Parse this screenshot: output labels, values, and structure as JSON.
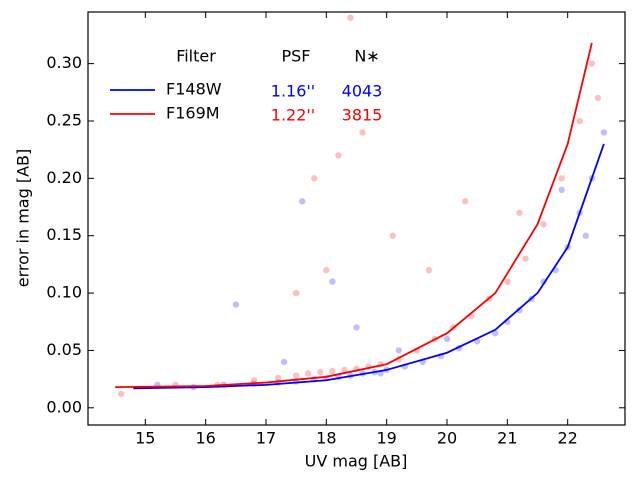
{
  "chart_data": {
    "type": "scatter",
    "x_label": "UV mag [AB]",
    "y_label": "error in mag [AB]",
    "xlim": [
      14.05,
      22.95
    ],
    "ylim": [
      -0.015,
      0.345
    ],
    "xticks": [
      15,
      16,
      17,
      18,
      19,
      20,
      21,
      22
    ],
    "yticks": [
      {
        "value": 0,
        "label": "0.00"
      },
      {
        "value": 0.05,
        "label": "0.05"
      },
      {
        "value": 0.1,
        "label": "0.10"
      },
      {
        "value": 0.15,
        "label": "0.15"
      },
      {
        "value": 0.2,
        "label": "0.20"
      },
      {
        "value": 0.25,
        "label": "0.25"
      },
      {
        "value": 0.3,
        "label": "0.30"
      }
    ],
    "legend": {
      "headers": [
        "Filter",
        "PSF",
        "N∗"
      ],
      "position": "upper left"
    },
    "series": [
      {
        "name": "F148W",
        "color": "#0000ff",
        "psf": "1.16''",
        "count": 4043,
        "x": [
          15.2,
          15.8,
          16.3,
          16.8,
          17.2,
          17.5,
          17.8,
          18.0,
          18.2,
          18.4,
          18.6,
          18.8,
          19.0,
          19.3,
          19.6,
          19.9,
          20.2,
          20.5,
          20.8,
          21.0,
          21.2,
          21.4,
          21.6,
          21.8,
          22.0,
          22.2,
          22.4,
          22.6,
          16.5,
          17.6,
          18.1,
          18.5,
          19.2,
          20.0,
          21.9,
          22.3,
          17.3,
          18.9
        ],
        "y": [
          0.02,
          0.018,
          0.02,
          0.021,
          0.022,
          0.023,
          0.025,
          0.026,
          0.027,
          0.028,
          0.03,
          0.031,
          0.033,
          0.036,
          0.04,
          0.045,
          0.052,
          0.058,
          0.065,
          0.075,
          0.085,
          0.095,
          0.11,
          0.12,
          0.14,
          0.17,
          0.2,
          0.24,
          0.09,
          0.18,
          0.11,
          0.07,
          0.05,
          0.06,
          0.19,
          0.15,
          0.04,
          0.03
        ],
        "line_x": [
          14.8,
          16,
          17,
          18,
          19,
          20,
          20.8,
          21.5,
          22,
          22.6
        ],
        "line_y": [
          0.017,
          0.018,
          0.02,
          0.024,
          0.033,
          0.048,
          0.068,
          0.1,
          0.14,
          0.23
        ]
      },
      {
        "name": "F169M",
        "color": "#ff0000",
        "psf": "1.22''",
        "count": 3815,
        "x": [
          14.6,
          15.5,
          16.2,
          16.8,
          17.2,
          17.5,
          17.7,
          17.9,
          18.1,
          18.3,
          18.5,
          18.7,
          18.9,
          19.2,
          19.5,
          19.8,
          20.1,
          20.4,
          20.7,
          21.0,
          21.3,
          21.6,
          21.9,
          22.2,
          22.4,
          17.8,
          18.2,
          18.6,
          18.4,
          19.1,
          19.7,
          20.3,
          21.2,
          18.0,
          17.5,
          22.5
        ],
        "y": [
          0.012,
          0.02,
          0.02,
          0.024,
          0.026,
          0.028,
          0.03,
          0.031,
          0.032,
          0.033,
          0.034,
          0.036,
          0.038,
          0.042,
          0.05,
          0.06,
          0.07,
          0.08,
          0.095,
          0.11,
          0.13,
          0.16,
          0.2,
          0.25,
          0.3,
          0.2,
          0.22,
          0.24,
          0.34,
          0.15,
          0.12,
          0.18,
          0.17,
          0.12,
          0.1,
          0.27
        ],
        "line_x": [
          14.5,
          16,
          17,
          18,
          19,
          20,
          20.8,
          21.5,
          22,
          22.4
        ],
        "line_y": [
          0.018,
          0.019,
          0.022,
          0.027,
          0.038,
          0.065,
          0.1,
          0.16,
          0.23,
          0.318
        ]
      }
    ]
  }
}
